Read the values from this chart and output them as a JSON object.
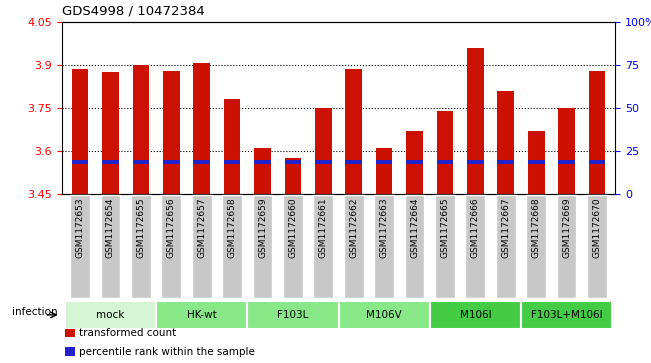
{
  "title": "GDS4998 / 10472384",
  "samples": [
    "GSM1172653",
    "GSM1172654",
    "GSM1172655",
    "GSM1172656",
    "GSM1172657",
    "GSM1172658",
    "GSM1172659",
    "GSM1172660",
    "GSM1172661",
    "GSM1172662",
    "GSM1172663",
    "GSM1172664",
    "GSM1172665",
    "GSM1172666",
    "GSM1172667",
    "GSM1172668",
    "GSM1172669",
    "GSM1172670"
  ],
  "red_values": [
    3.885,
    3.875,
    3.9,
    3.88,
    3.905,
    3.78,
    3.61,
    3.575,
    3.75,
    3.885,
    3.61,
    3.67,
    3.74,
    3.96,
    3.81,
    3.67,
    3.75,
    3.88
  ],
  "blue_values": [
    3.562,
    3.562,
    3.562,
    3.562,
    3.562,
    3.562,
    3.562,
    3.562,
    3.562,
    3.562,
    3.562,
    3.562,
    3.562,
    3.562,
    3.562,
    3.562,
    3.562,
    3.562
  ],
  "y_min": 3.45,
  "y_max": 4.05,
  "y_ticks_left": [
    3.45,
    3.6,
    3.75,
    3.9,
    4.05
  ],
  "y_ticks_right_positions": [
    3.45,
    3.6,
    3.75,
    3.9,
    4.05
  ],
  "y_right_labels": [
    "0",
    "25",
    "50",
    "75",
    "100%"
  ],
  "groups": [
    {
      "label": "mock",
      "start": 0,
      "end": 3,
      "color": "#d4f5d4"
    },
    {
      "label": "HK-wt",
      "start": 3,
      "end": 6,
      "color": "#88e888"
    },
    {
      "label": "F103L",
      "start": 6,
      "end": 9,
      "color": "#88e888"
    },
    {
      "label": "M106V",
      "start": 9,
      "end": 12,
      "color": "#88e888"
    },
    {
      "label": "M106I",
      "start": 12,
      "end": 15,
      "color": "#44cc44"
    },
    {
      "label": "F103L+M106I",
      "start": 15,
      "end": 18,
      "color": "#44cc44"
    }
  ],
  "bar_color_red": "#cc1100",
  "bar_color_blue": "#2222cc",
  "bar_width": 0.55,
  "infection_label": "infection",
  "legend_red": "transformed count",
  "legend_blue": "percentile rank within the sample",
  "tick_box_color": "#c8c8c8",
  "plot_bg_color": "#ffffff"
}
